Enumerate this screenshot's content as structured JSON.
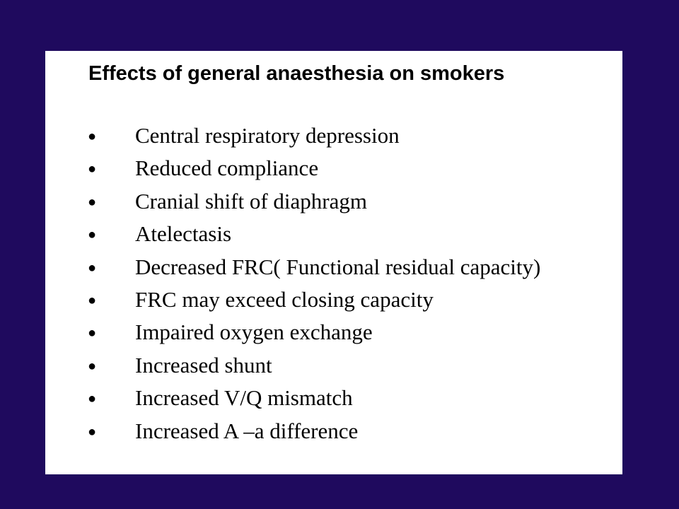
{
  "title": "Effects of general anaesthesia on smokers",
  "items": [
    "Central respiratory depression",
    "Reduced compliance",
    "Cranial shift of diaphragm",
    "Atelectasis",
    "Decreased FRC( Functional residual capacity)",
    "FRC may exceed closing capacity",
    "Impaired oxygen exchange",
    "Increased shunt",
    "Increased V/Q mismatch",
    "Increased A –a difference"
  ]
}
